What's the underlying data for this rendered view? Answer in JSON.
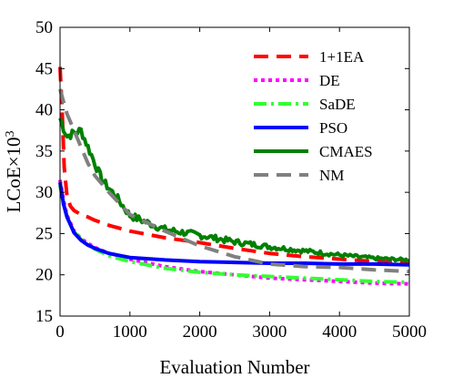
{
  "chart_data": {
    "type": "line",
    "xlabel": "Evaluation Number",
    "ylabel_base": "LCoE×10",
    "ylabel_exp": "3",
    "xlim": [
      0,
      5000
    ],
    "ylim": [
      15,
      50
    ],
    "xticks": [
      0,
      1000,
      2000,
      3000,
      4000,
      5000
    ],
    "yticks": [
      15,
      20,
      25,
      30,
      35,
      40,
      45,
      50
    ],
    "grid": false,
    "legend_position": "top-right",
    "series": [
      {
        "name": "1+1EA",
        "color": "#ff0000",
        "dash": "dashed",
        "noise": 0,
        "x": [
          0,
          30,
          60,
          100,
          150,
          200,
          300,
          400,
          500,
          700,
          1000,
          1500,
          2000,
          2500,
          3000,
          3500,
          4000,
          4500,
          5000
        ],
        "y": [
          45.2,
          40,
          33,
          29.5,
          28.3,
          27.8,
          27.3,
          27,
          26.6,
          26,
          25.3,
          24.5,
          23.9,
          23.2,
          22.6,
          22.2,
          21.9,
          21.6,
          21.5
        ]
      },
      {
        "name": "DE",
        "color": "#ff00ff",
        "dash": "dotted",
        "noise": 0,
        "x": [
          0,
          50,
          100,
          200,
          300,
          400,
          500,
          700,
          1000,
          1500,
          2000,
          2500,
          3000,
          3500,
          4000,
          4500,
          5000
        ],
        "y": [
          31.5,
          29,
          27.2,
          25.3,
          24.4,
          23.8,
          23.3,
          22.6,
          21.9,
          21,
          20.4,
          20,
          19.6,
          19.4,
          19.2,
          19,
          18.9
        ]
      },
      {
        "name": "SaDE",
        "color": "#33ff33",
        "dash": "dashdot",
        "noise": 0,
        "x": [
          0,
          50,
          100,
          200,
          300,
          400,
          500,
          700,
          1000,
          1500,
          2000,
          2500,
          3000,
          3500,
          4000,
          4500,
          5000
        ],
        "y": [
          30.8,
          28.5,
          27,
          25.2,
          24.3,
          23.6,
          23.1,
          22.3,
          21.6,
          20.8,
          20.3,
          20,
          19.8,
          19.6,
          19.4,
          19.2,
          19.1
        ]
      },
      {
        "name": "PSO",
        "color": "#0000ff",
        "dash": "solid",
        "noise": 0,
        "x": [
          0,
          50,
          100,
          200,
          300,
          400,
          500,
          700,
          1000,
          1500,
          2000,
          2500,
          3000,
          3500,
          4000,
          4500,
          5000
        ],
        "y": [
          31.2,
          28.6,
          27,
          25.1,
          24.2,
          23.6,
          23.2,
          22.6,
          22.1,
          21.8,
          21.6,
          21.5,
          21.4,
          21.4,
          21.3,
          21.3,
          21.2
        ]
      },
      {
        "name": "CMAES",
        "color": "#008000",
        "dash": "solid",
        "noise": 0.55,
        "x": [
          0,
          50,
          100,
          200,
          300,
          400,
          500,
          600,
          700,
          800,
          1000,
          1200,
          1500,
          2000,
          2500,
          3000,
          3500,
          4000,
          4500,
          5000
        ],
        "y": [
          39,
          37.8,
          36.8,
          37.2,
          37.5,
          35.5,
          33.5,
          31.5,
          30.5,
          29.5,
          27.2,
          26.5,
          25.5,
          24.8,
          24.0,
          23.4,
          22.9,
          22.4,
          22.0,
          21.8
        ]
      },
      {
        "name": "NM",
        "color": "#808080",
        "dash": "dashed",
        "noise": 0,
        "x": [
          0,
          50,
          100,
          200,
          300,
          400,
          500,
          700,
          1000,
          1500,
          2000,
          2500,
          3000,
          3500,
          4000,
          4500,
          5000
        ],
        "y": [
          42.5,
          41,
          39.5,
          37.5,
          35.5,
          33.5,
          32,
          30,
          27.3,
          25.3,
          23.5,
          22.2,
          21.3,
          21,
          20.9,
          20.6,
          20.4
        ]
      }
    ]
  }
}
